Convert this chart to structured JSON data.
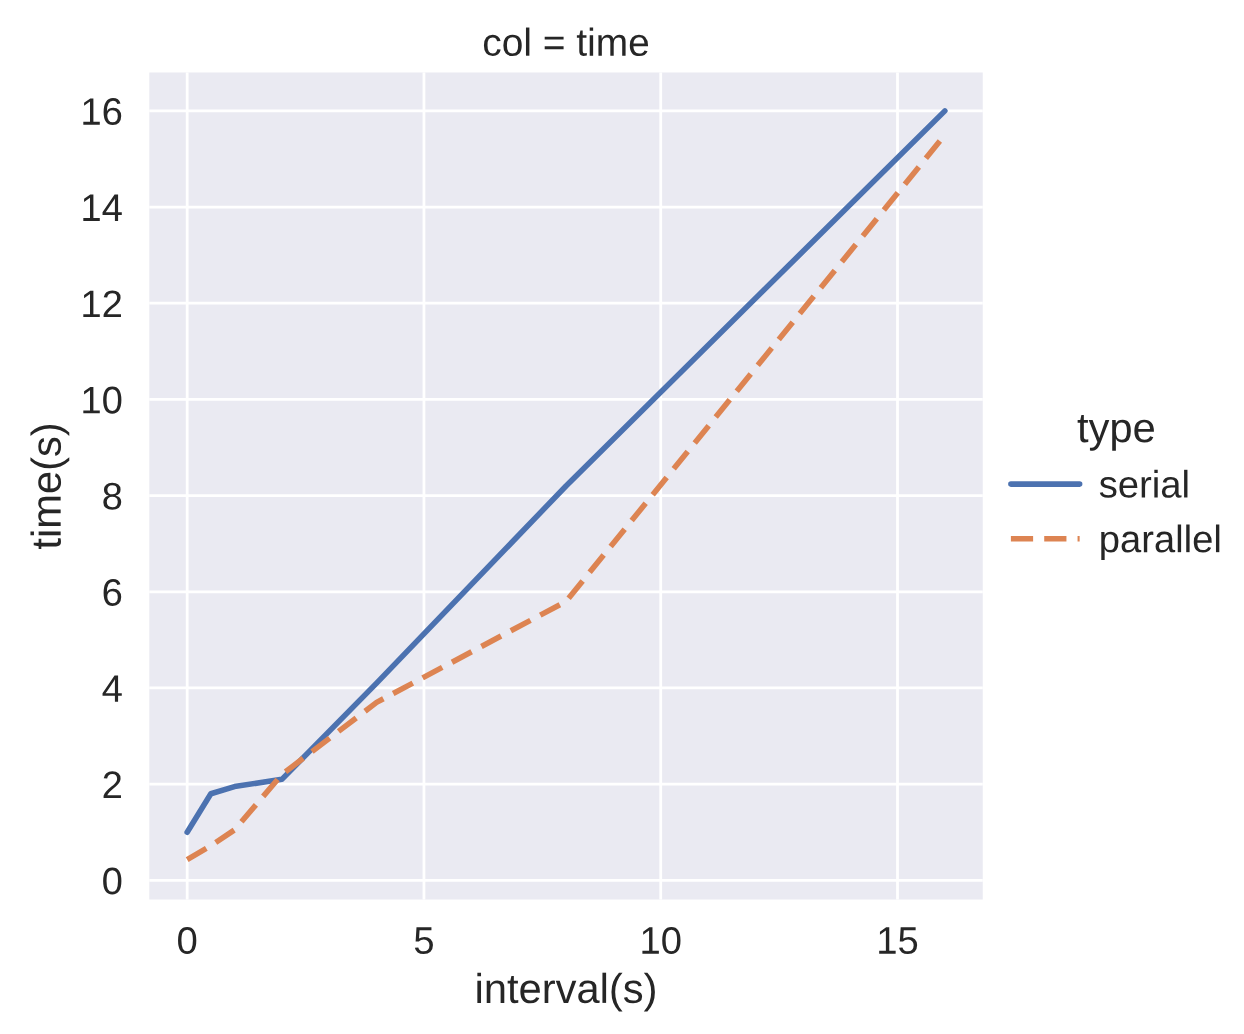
{
  "chart_data": {
    "type": "line",
    "title": "col = time",
    "xlabel": "interval(s)",
    "ylabel": "time(s)",
    "legend_title": "type",
    "x": [
      0,
      0.5,
      1,
      2,
      4,
      8,
      16
    ],
    "series": [
      {
        "name": "serial",
        "color": "#4c72b0",
        "line_style": "solid",
        "values": [
          1.0,
          1.8,
          1.95,
          2.1,
          4.1,
          8.2,
          16.0
        ]
      },
      {
        "name": "parallel",
        "color": "#dd8452",
        "line_style": "dashed",
        "values": [
          0.43,
          0.72,
          1.05,
          2.2,
          3.7,
          5.8,
          15.5
        ]
      }
    ],
    "xlim": [
      -0.8,
      16.8
    ],
    "xticks": [
      0,
      5,
      10,
      15
    ],
    "ylim": [
      -0.4,
      16.8
    ],
    "yticks": [
      0,
      2,
      4,
      6,
      8,
      10,
      12,
      14,
      16
    ],
    "grid": true,
    "legend": "right"
  }
}
